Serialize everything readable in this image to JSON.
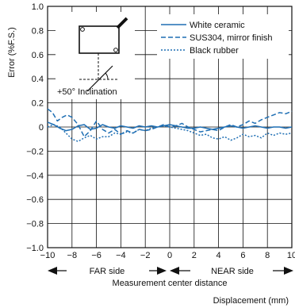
{
  "chart_data": {
    "type": "line",
    "ylabel": "Error (%F.S.)",
    "xlabel": "Displacement (mm)",
    "xlim": [
      -10,
      10
    ],
    "ylim": [
      -1.0,
      1.0
    ],
    "xticks": [
      "−10",
      "−8",
      "−6",
      "−4",
      "−2",
      "0",
      "2",
      "4",
      "6",
      "8",
      "10"
    ],
    "yticks": [
      "1.0",
      "0.8",
      "0.6",
      "0.4",
      "0.2",
      "0",
      "−0.2",
      "−0.4",
      "−0.6",
      "−0.8",
      "−1.0"
    ],
    "grid": true,
    "legend_position": "top-right",
    "series": [
      {
        "name": "White ceramic",
        "style": "solid",
        "color": "#1f6fb4",
        "x": [
          -10,
          -9.5,
          -9,
          -8.5,
          -8,
          -7.5,
          -7,
          -6.5,
          -6,
          -5.5,
          -5,
          -4.5,
          -4,
          -3.5,
          -3,
          -2.5,
          -2,
          -1.5,
          -1,
          -0.5,
          0,
          0.5,
          1,
          1.5,
          2,
          2.5,
          3,
          3.5,
          4,
          4.5,
          5,
          5.5,
          6,
          6.5,
          7,
          7.5,
          8,
          8.5,
          9,
          9.5,
          10
        ],
        "y": [
          0.04,
          0.02,
          -0.01,
          -0.03,
          -0.02,
          0.01,
          0.02,
          -0.02,
          -0.01,
          0.02,
          0.0,
          -0.01,
          0.01,
          0.0,
          -0.01,
          0.01,
          0.0,
          0.01,
          0.0,
          0.01,
          0.02,
          0.01,
          0.0,
          -0.01,
          -0.01,
          0.0,
          -0.01,
          -0.02,
          -0.01,
          0.0,
          0.01,
          0.0,
          -0.01,
          0.0,
          0.01,
          0.0,
          -0.01,
          0.0,
          0.0,
          -0.01,
          0.0
        ]
      },
      {
        "name": "SUS304, mirror finish",
        "style": "dashed",
        "color": "#1f6fb4",
        "x": [
          -10,
          -9.6,
          -9.2,
          -8.8,
          -8.4,
          -8,
          -7.5,
          -7,
          -6.5,
          -6,
          -5.5,
          -5,
          -4.5,
          -4,
          -3.5,
          -3,
          -2.5,
          -2,
          -1.5,
          -1,
          -0.5,
          0,
          0.5,
          1,
          1.5,
          2,
          2.5,
          3,
          3.5,
          4,
          4.5,
          5,
          5.5,
          6,
          6.5,
          7,
          7.5,
          8,
          8.5,
          9,
          9.5,
          10
        ],
        "y": [
          0.15,
          0.12,
          0.05,
          0.08,
          0.1,
          0.08,
          0.02,
          -0.08,
          -0.03,
          0.05,
          -0.02,
          -0.05,
          -0.02,
          -0.06,
          -0.03,
          -0.05,
          -0.02,
          -0.03,
          -0.02,
          0.0,
          0.02,
          0.0,
          0.01,
          0.03,
          0.0,
          -0.02,
          -0.04,
          -0.03,
          -0.02,
          -0.03,
          0.0,
          0.02,
          0.0,
          0.02,
          0.05,
          0.03,
          0.06,
          0.08,
          0.1,
          0.12,
          0.11,
          0.13
        ]
      },
      {
        "name": "Black rubber",
        "style": "dotted",
        "color": "#1f6fb4",
        "x": [
          -10,
          -9.5,
          -9,
          -8.5,
          -8,
          -7.5,
          -7,
          -6.5,
          -6,
          -5.5,
          -5,
          -4.5,
          -4,
          -3.5,
          -3,
          -2.5,
          -2,
          -1.5,
          -1,
          -0.5,
          0,
          0.5,
          1,
          1.5,
          2,
          2.5,
          3,
          3.5,
          4,
          4.5,
          5,
          5.5,
          6,
          6.5,
          7,
          7.5,
          8,
          8.5,
          9,
          9.5,
          10
        ],
        "y": [
          0.0,
          0.02,
          0.0,
          -0.05,
          -0.1,
          -0.12,
          -0.09,
          -0.07,
          -0.1,
          -0.08,
          -0.08,
          -0.05,
          -0.06,
          -0.04,
          -0.05,
          -0.02,
          -0.03,
          -0.01,
          0.0,
          0.01,
          0.0,
          -0.01,
          -0.02,
          -0.03,
          -0.05,
          -0.07,
          -0.06,
          -0.09,
          -0.1,
          -0.08,
          -0.11,
          -0.09,
          -0.06,
          -0.08,
          -0.07,
          -0.09,
          -0.05,
          -0.07,
          -0.05,
          -0.06,
          -0.05
        ]
      }
    ],
    "annotations": {
      "inclination_label": "+50° Inclination",
      "far_side_label": "FAR side",
      "near_side_label": "NEAR side",
      "center_label": "Measurement center distance"
    }
  }
}
